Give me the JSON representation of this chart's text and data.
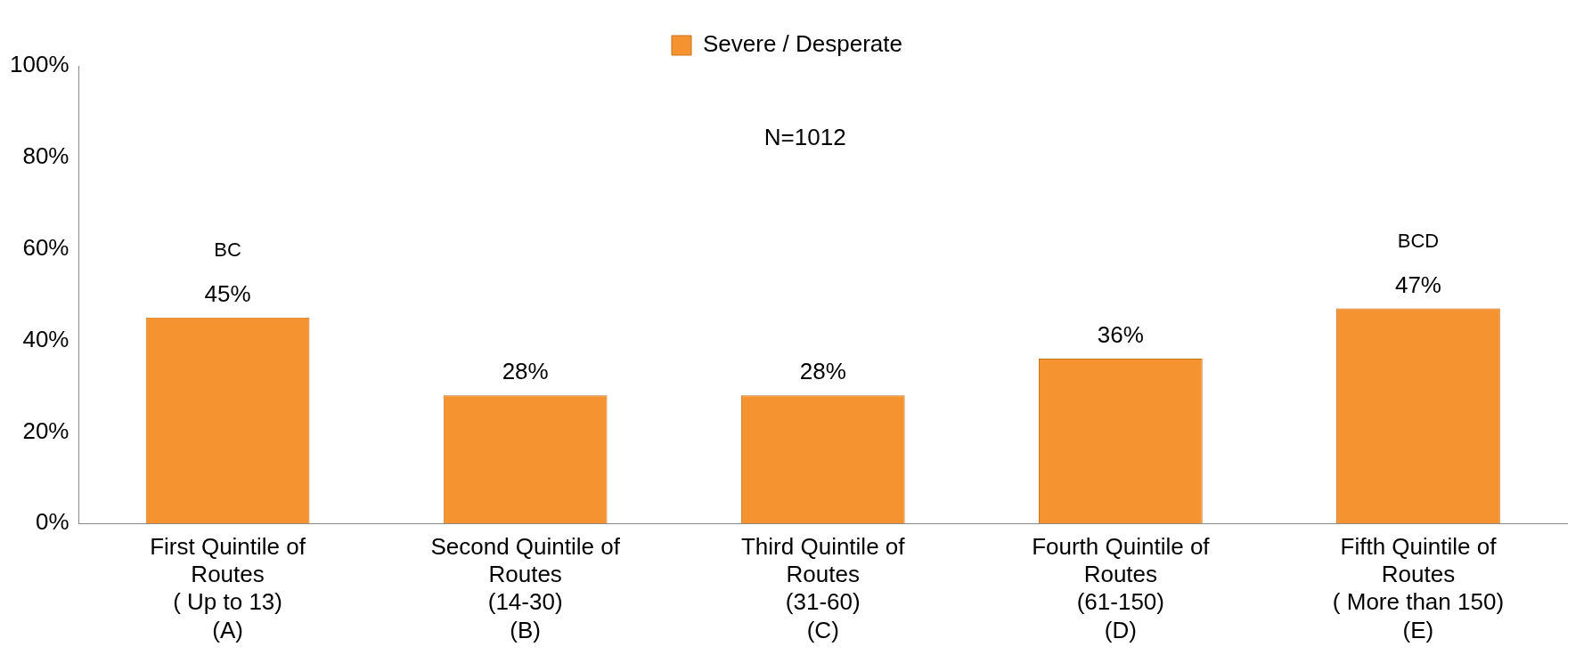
{
  "chart_data": {
    "type": "bar",
    "categories": [
      "First Quintile of\nRoutes\n( Up to 13)\n(A)",
      "Second Quintile of\nRoutes\n(14-30)\n(B)",
      "Third Quintile of\nRoutes\n(31-60)\n(C)",
      "Fourth Quintile of\nRoutes\n(61-150)\n(D)",
      "Fifth Quintile of\nRoutes\n( More than 150)\n(E)"
    ],
    "series": [
      {
        "name": "Severe / Desperate",
        "color": "#f59331",
        "values": [
          45,
          28,
          28,
          36,
          47
        ],
        "value_labels": [
          "45%",
          "28%",
          "28%",
          "36%",
          "47%"
        ]
      }
    ],
    "ylim": [
      0,
      100
    ],
    "yticks": [
      {
        "value": 0,
        "label": "0%"
      },
      {
        "value": 20,
        "label": "20%"
      },
      {
        "value": 40,
        "label": "40%"
      },
      {
        "value": 60,
        "label": "60%"
      },
      {
        "value": 80,
        "label": "80%"
      },
      {
        "value": 100,
        "label": "100%"
      }
    ],
    "annotations": [
      "N=1012",
      "BC",
      "BCD"
    ],
    "grid": false,
    "legend": "top"
  }
}
